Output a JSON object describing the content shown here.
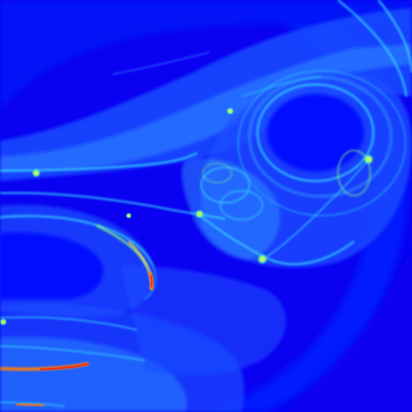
{
  "image": {
    "kind": "fractal-render",
    "palette": {
      "background": "#0a00f2",
      "deep_blue": "#0010ff",
      "mid_blue": "#1a4dff",
      "light_blue": "#2f8cff",
      "cyan": "#35d6ff",
      "green": "#8dff7a",
      "yellow": "#ffe84a",
      "orange": "#ff7a10",
      "red": "#ff2a00"
    }
  }
}
